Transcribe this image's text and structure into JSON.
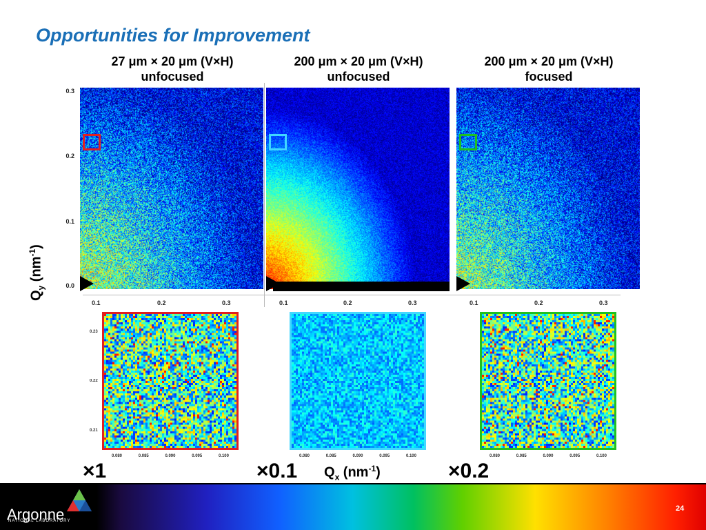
{
  "slide": {
    "title": "Opportunities for Improvement",
    "page_number": "24"
  },
  "panels": [
    {
      "line1": "27 μm × 20 μm (V×H)",
      "line2": "unfocused",
      "roi_color": "#e02020",
      "factor": "×1"
    },
    {
      "line1": "200 μm × 20 μm (V×H)",
      "line2": "unfocused",
      "roi_color": "#40d8ff",
      "factor": "×0.1"
    },
    {
      "line1": "200 μm × 20 μm (V×H)",
      "line2": "focused",
      "roi_color": "#20c020",
      "factor": "×0.2"
    }
  ],
  "axes": {
    "ylabel_main": "Q",
    "ylabel_sub": "y",
    "ylabel_unit": " (nm",
    "ylabel_sup": "-1",
    "ylabel_close": ")",
    "xlabel_main": "Q",
    "xlabel_sub": "x",
    "xlabel_unit": " (nm",
    "xlabel_sup": "-1",
    "xlabel_close": ")",
    "y_ticks": [
      "0.3",
      "0.2",
      "0.1",
      "0.0"
    ],
    "x_ticks": [
      "0.1",
      "0.2",
      "0.3"
    ],
    "zoom_y_ticks": [
      "0.23",
      "0.22",
      "0.21"
    ],
    "zoom_x_ticks": [
      "0.080",
      "0.085",
      "0.090",
      "0.095",
      "0.100"
    ]
  },
  "footer": {
    "logo_text": "Argonne",
    "logo_sub": "NATIONAL LABORATORY"
  },
  "colors": {
    "title": "#1a6fb7",
    "roi_red": "#e02020",
    "roi_cyan": "#40d8ff",
    "roi_green": "#20c020"
  }
}
